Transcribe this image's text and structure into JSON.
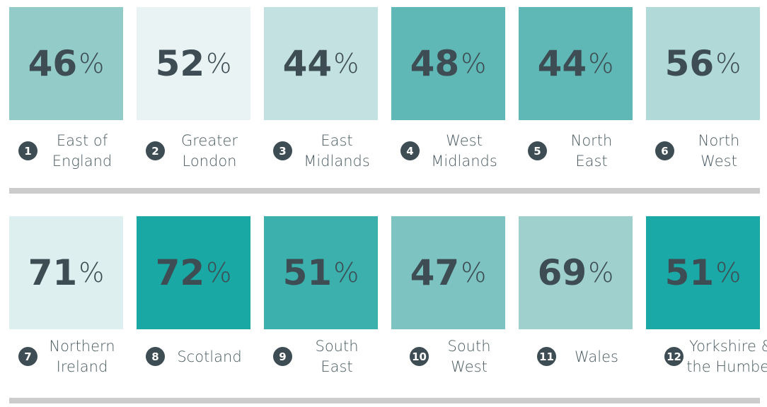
{
  "unit": "%",
  "rows": [
    [
      {
        "rank": 1,
        "value": 46,
        "label_lines": [
          "East of",
          "England"
        ],
        "color": "#93cbc9"
      },
      {
        "rank": 2,
        "value": 52,
        "label_lines": [
          "Greater",
          "London"
        ],
        "color": "#e9f3f4"
      },
      {
        "rank": 3,
        "value": 44,
        "label_lines": [
          "East",
          "Midlands"
        ],
        "color": "#c2e1e0"
      },
      {
        "rank": 4,
        "value": 48,
        "label_lines": [
          "West",
          "Midlands"
        ],
        "color": "#5fb8b6"
      },
      {
        "rank": 5,
        "value": 44,
        "label_lines": [
          "North",
          "East"
        ],
        "color": "#60b8b6"
      },
      {
        "rank": 6,
        "value": 56,
        "label_lines": [
          "North",
          "West"
        ],
        "color": "#b0d9d8"
      }
    ],
    [
      {
        "rank": 7,
        "value": 71,
        "label_lines": [
          "Northern",
          "Ireland"
        ],
        "color": "#deefef"
      },
      {
        "rank": 8,
        "value": 72,
        "label_lines": [
          "Scotland"
        ],
        "color": "#1aa8a4"
      },
      {
        "rank": 9,
        "value": 51,
        "label_lines": [
          "South",
          "East"
        ],
        "color": "#3bb0ad"
      },
      {
        "rank": 10,
        "value": 47,
        "label_lines": [
          "South",
          "West"
        ],
        "color": "#7cc3c1"
      },
      {
        "rank": 11,
        "value": 69,
        "label_lines": [
          "Wales"
        ],
        "color": "#9fd0ce"
      },
      {
        "rank": 12,
        "value": 51,
        "label_lines": [
          "Yorkshire &",
          "the Humber"
        ],
        "color": "#1aa9a6"
      }
    ]
  ]
}
